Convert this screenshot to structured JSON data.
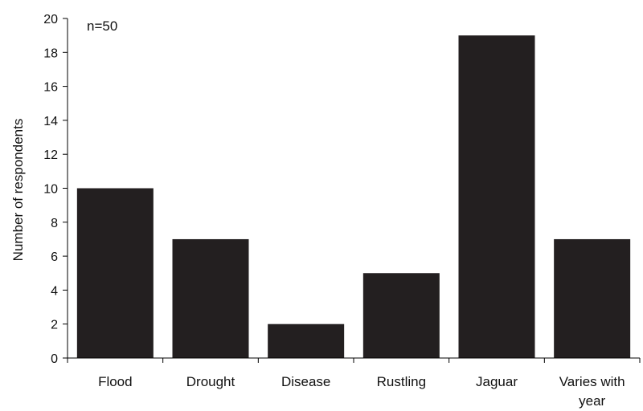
{
  "chart_data": {
    "type": "bar",
    "categories": [
      "Flood",
      "Drought",
      "Disease",
      "Rustling",
      "Jaguar",
      "Varies with year"
    ],
    "category_lines": [
      [
        "Flood"
      ],
      [
        "Drought"
      ],
      [
        "Disease"
      ],
      [
        "Rustling"
      ],
      [
        "Jaguar"
      ],
      [
        "Varies with",
        "year"
      ]
    ],
    "values": [
      10,
      7,
      2,
      5,
      19,
      7
    ],
    "title": "",
    "xlabel": "",
    "ylabel": "Number of respondents",
    "ylim": [
      0,
      20
    ],
    "yticks": [
      0,
      2,
      4,
      6,
      8,
      10,
      12,
      14,
      16,
      18,
      20
    ],
    "annotation": "n=50",
    "grid": false,
    "bar_color": "#231f20",
    "axis_color": "#000000"
  }
}
